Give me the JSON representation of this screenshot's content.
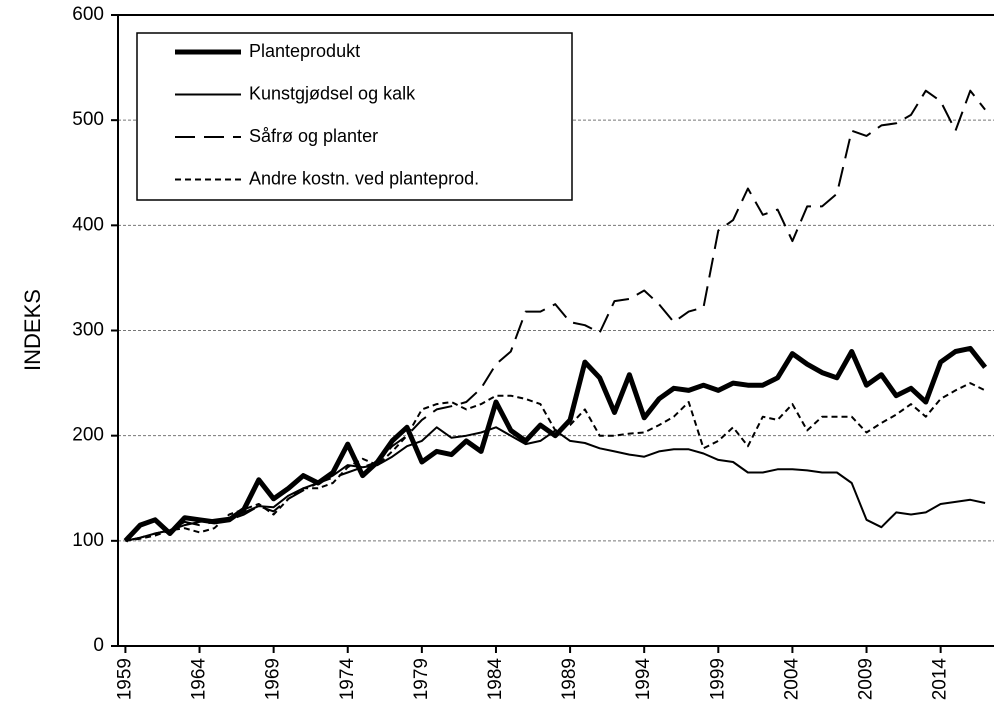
{
  "chart_data": {
    "type": "line",
    "y_label": "INDEKS",
    "x": [
      1959,
      1960,
      1961,
      1962,
      1963,
      1964,
      1965,
      1966,
      1967,
      1968,
      1969,
      1970,
      1971,
      1972,
      1973,
      1974,
      1975,
      1976,
      1977,
      1978,
      1979,
      1980,
      1981,
      1982,
      1983,
      1984,
      1985,
      1986,
      1987,
      1988,
      1989,
      1990,
      1991,
      1992,
      1993,
      1994,
      1995,
      1996,
      1997,
      1998,
      1999,
      2000,
      2001,
      2002,
      2003,
      2004,
      2005,
      2006,
      2007,
      2008,
      2009,
      2010,
      2011,
      2012,
      2013,
      2014,
      2015,
      2016,
      2017
    ],
    "series": [
      {
        "name": "Planteprodukt",
        "color": "#000000",
        "linewidth": 5,
        "dash": "none",
        "values": [
          100,
          115,
          120,
          107,
          122,
          120,
          118,
          120,
          130,
          158,
          140,
          150,
          162,
          155,
          165,
          192,
          162,
          175,
          195,
          208,
          175,
          185,
          182,
          195,
          185,
          232,
          205,
          195,
          210,
          200,
          215,
          270,
          255,
          222,
          258,
          217,
          235,
          245,
          243,
          248,
          243,
          250,
          248,
          248,
          255,
          278,
          268,
          260,
          255,
          280,
          248,
          258,
          238,
          245,
          232,
          270,
          280,
          283,
          265
        ]
      },
      {
        "name": "Kunstgjødsel og kalk",
        "color": "#000000",
        "linewidth": 2,
        "dash": "none",
        "values": [
          100,
          103,
          107,
          110,
          115,
          118,
          120,
          122,
          127,
          133,
          132,
          143,
          150,
          155,
          162,
          172,
          170,
          172,
          180,
          190,
          195,
          208,
          198,
          200,
          203,
          208,
          200,
          192,
          195,
          205,
          195,
          193,
          188,
          185,
          182,
          180,
          185,
          187,
          187,
          183,
          177,
          175,
          165,
          165,
          168,
          168,
          167,
          165,
          165,
          155,
          120,
          113,
          127,
          125,
          127,
          135,
          137,
          139,
          136
        ]
      },
      {
        "name": "Såfrø og planter",
        "color": "#000000",
        "linewidth": 2,
        "dash": "20,9",
        "values": [
          100,
          103,
          107,
          110,
          118,
          115,
          118,
          120,
          125,
          133,
          128,
          140,
          148,
          155,
          160,
          165,
          170,
          175,
          190,
          200,
          215,
          225,
          228,
          232,
          245,
          268,
          280,
          318,
          318,
          325,
          308,
          305,
          298,
          328,
          330,
          338,
          325,
          308,
          318,
          322,
          395,
          405,
          435,
          410,
          415,
          385,
          418,
          418,
          430,
          490,
          485,
          495,
          497,
          505,
          528,
          518,
          490,
          528,
          510
        ]
      },
      {
        "name": "Andre kostn. ved planteprod.",
        "color": "#000000",
        "linewidth": 2,
        "dash": "6,4",
        "values": [
          100,
          102,
          105,
          110,
          112,
          108,
          112,
          125,
          130,
          135,
          125,
          140,
          150,
          150,
          155,
          170,
          178,
          172,
          185,
          200,
          225,
          230,
          232,
          225,
          230,
          238,
          238,
          235,
          230,
          205,
          210,
          225,
          200,
          200,
          202,
          203,
          210,
          218,
          232,
          188,
          195,
          208,
          190,
          218,
          215,
          230,
          205,
          218,
          218,
          218,
          203,
          212,
          220,
          230,
          218,
          235,
          243,
          250,
          243
        ]
      }
    ],
    "xlim": [
      1958.5,
      2017.6
    ],
    "xticks": [
      1959,
      1964,
      1969,
      1974,
      1979,
      1984,
      1989,
      1994,
      1999,
      2004,
      2009,
      2014
    ],
    "ylim": [
      0,
      600
    ],
    "yticks": [
      0,
      100,
      200,
      300,
      400,
      500,
      600
    ],
    "grid": true,
    "legend": "upper left"
  }
}
